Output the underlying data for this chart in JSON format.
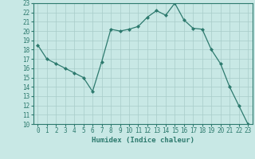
{
  "x": [
    0,
    1,
    2,
    3,
    4,
    5,
    6,
    7,
    8,
    9,
    10,
    11,
    12,
    13,
    14,
    15,
    16,
    17,
    18,
    19,
    20,
    21,
    22,
    23
  ],
  "y": [
    18.5,
    17.0,
    16.5,
    16.0,
    15.5,
    15.0,
    13.5,
    16.7,
    20.2,
    20.0,
    20.2,
    20.5,
    21.5,
    22.2,
    21.7,
    23.0,
    21.2,
    20.3,
    20.2,
    18.0,
    16.5,
    14.0,
    12.0,
    10.0
  ],
  "line_color": "#2d7a6e",
  "marker": "D",
  "marker_size": 2,
  "bg_color": "#c8e8e5",
  "grid_color": "#a8ccc9",
  "xlabel": "Humidex (Indice chaleur)",
  "xlim": [
    -0.5,
    23.5
  ],
  "ylim": [
    10,
    23
  ],
  "yticks": [
    10,
    11,
    12,
    13,
    14,
    15,
    16,
    17,
    18,
    19,
    20,
    21,
    22,
    23
  ],
  "xticks": [
    0,
    1,
    2,
    3,
    4,
    5,
    6,
    7,
    8,
    9,
    10,
    11,
    12,
    13,
    14,
    15,
    16,
    17,
    18,
    19,
    20,
    21,
    22,
    23
  ],
  "tick_fontsize": 5.5,
  "xlabel_fontsize": 6.5,
  "tick_color": "#2d7a6e",
  "spine_color": "#2d7a6e"
}
